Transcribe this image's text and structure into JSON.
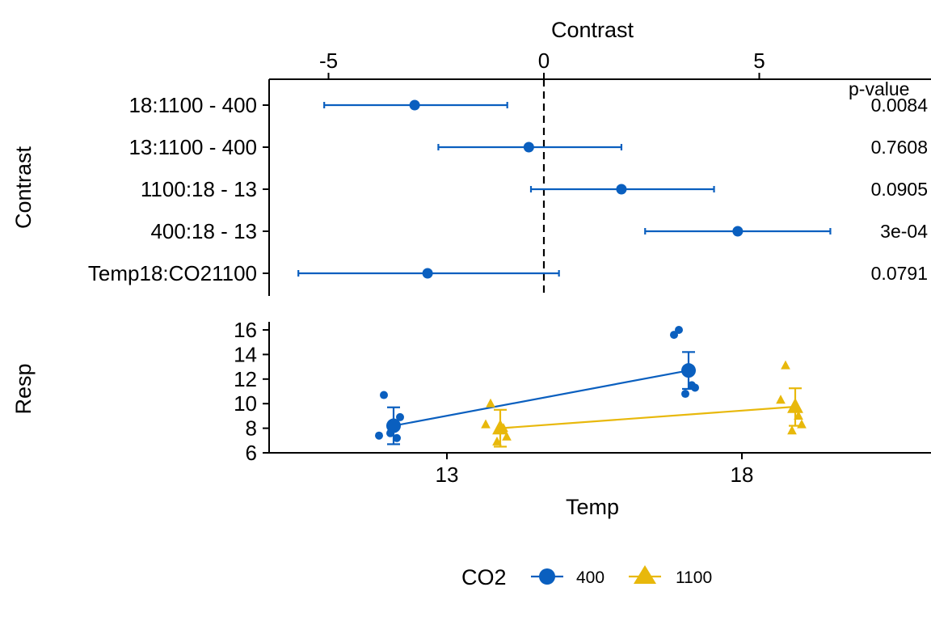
{
  "colors": {
    "co2_400": "#0a5fbf",
    "co2_1100": "#e8b80b",
    "axis": "#000000"
  },
  "top_panel": {
    "x_title": "Contrast",
    "y_title": "Contrast",
    "pvalue_header": "p-value"
  },
  "bottom_panel": {
    "x_title": "Temp",
    "y_title": "Resp"
  },
  "legend": {
    "title": "CO2",
    "items": [
      {
        "label": "400",
        "icon": "circle-marker-icon"
      },
      {
        "label": "1100",
        "icon": "triangle-marker-icon"
      }
    ]
  },
  "chart_data": [
    {
      "type": "scatter",
      "subtype": "forest-plot",
      "xlabel": "Contrast",
      "ylabel": "Contrast",
      "xlim": [
        -6.3,
        8.7
      ],
      "x_ticks": [
        -5,
        0,
        5
      ],
      "x_tick_labels": [
        "-5",
        "0",
        "5"
      ],
      "x_axis_position": "top",
      "reference_line": 0,
      "color": "#0a5fbf",
      "rows": [
        {
          "label": "18:1100 - 400",
          "estimate": -3.0,
          "lower": -5.1,
          "upper": -0.85,
          "p_value": "0.0084"
        },
        {
          "label": "13:1100 - 400",
          "estimate": -0.35,
          "lower": -2.45,
          "upper": 1.8,
          "p_value": "0.7608"
        },
        {
          "label": "1100:18 - 13",
          "estimate": 1.8,
          "lower": -0.3,
          "upper": 3.95,
          "p_value": "0.0905"
        },
        {
          "label": "400:18 - 13",
          "estimate": 4.5,
          "lower": 2.35,
          "upper": 6.65,
          "p_value": "3e-04"
        },
        {
          "label": "Temp18:CO21100",
          "estimate": -2.7,
          "lower": -5.7,
          "upper": 0.35,
          "p_value": "0.0791"
        }
      ]
    },
    {
      "type": "line",
      "subtype": "interaction-plot",
      "xlabel": "Temp",
      "ylabel": "Resp",
      "categories": [
        "13",
        "18"
      ],
      "ylim": [
        6,
        16.5
      ],
      "y_ticks": [
        6,
        8,
        10,
        12,
        14,
        16
      ],
      "grid": false,
      "legend_position": "bottom",
      "series": [
        {
          "name": "400",
          "marker": "circle",
          "color": "#0a5fbf",
          "means": [
            8.2,
            12.7
          ],
          "lower": [
            6.7,
            11.2
          ],
          "upper": [
            9.7,
            14.2
          ],
          "points": [
            [
              10.7,
              7.4,
              7.2,
              8.9,
              7.6
            ],
            [
              16.0,
              15.6,
              11.5,
              11.3,
              10.8
            ]
          ]
        },
        {
          "name": "1100",
          "marker": "triangle",
          "color": "#e8b80b",
          "means": [
            8.0,
            9.75
          ],
          "lower": [
            6.5,
            8.2
          ],
          "upper": [
            9.5,
            11.25
          ],
          "points": [
            [
              10.0,
              8.3,
              8.0,
              7.3,
              6.9
            ],
            [
              13.1,
              10.3,
              9.0,
              8.3,
              7.8
            ]
          ]
        }
      ]
    }
  ]
}
